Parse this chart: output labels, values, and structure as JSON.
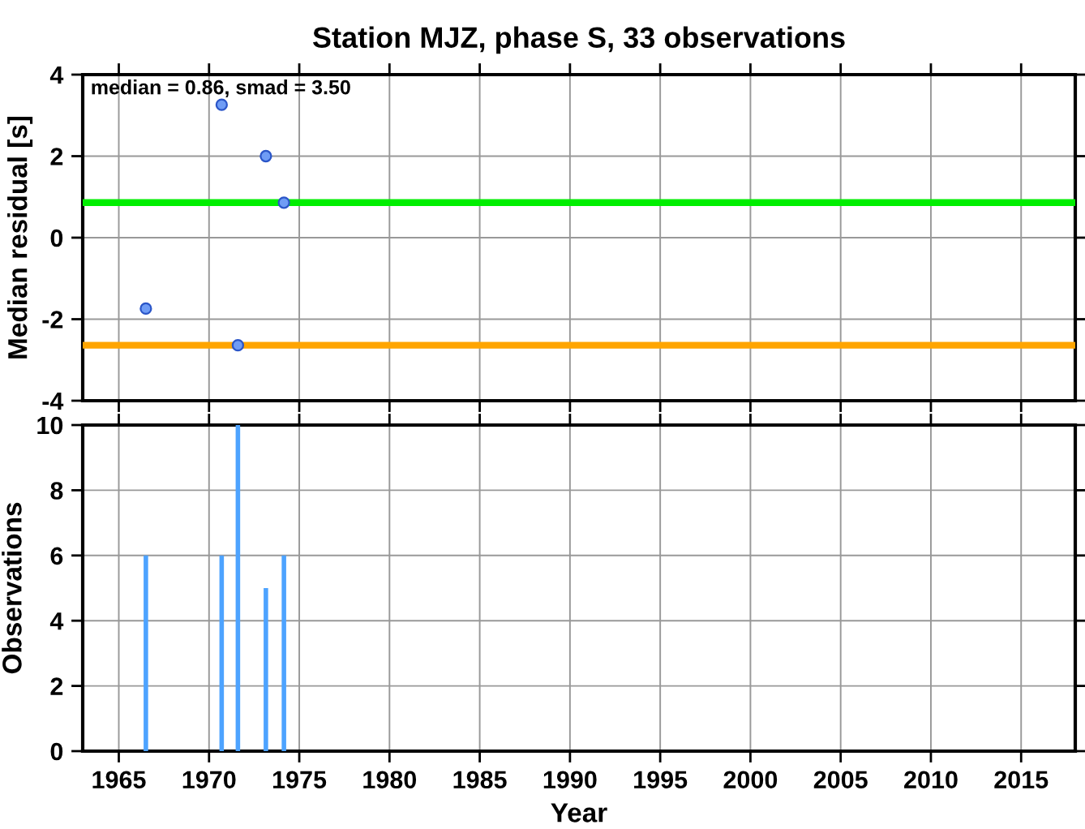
{
  "chart_data": [
    {
      "type": "scatter",
      "title": "Station MJZ, phase S, 33 observations",
      "ylabel": "Median residual [s]",
      "x": [
        1966.5,
        1970.7,
        1971.6,
        1973.15,
        1974.15
      ],
      "values": [
        -1.74,
        3.26,
        -2.64,
        2.0,
        0.86
      ],
      "color": "#6f9cf5",
      "marker": "circle",
      "xlim": [
        1963,
        2018
      ],
      "xticks": [
        1965,
        1970,
        1975,
        1980,
        1985,
        1990,
        1995,
        2000,
        2005,
        2010,
        2015
      ],
      "ylim": [
        -4,
        4
      ],
      "yticks": [
        -4,
        -2,
        0,
        2,
        4
      ],
      "grid": true,
      "tick_labels": "y",
      "annotations": [
        "median = 0.86, smad = 3.50"
      ],
      "ref_lines": [
        {
          "axis": "y",
          "value": 0.86,
          "color": "#00ee00"
        },
        {
          "axis": "y",
          "value": -2.64,
          "color": "#ffa500"
        }
      ]
    },
    {
      "type": "bar",
      "xlabel": "Year",
      "ylabel": "Observations",
      "x": [
        1966.5,
        1970.7,
        1971.6,
        1973.15,
        1974.15
      ],
      "values": [
        6,
        6,
        10,
        5,
        6
      ],
      "color": "#4da3ff",
      "xlim": [
        1963,
        2018
      ],
      "xticks": [
        1965,
        1970,
        1975,
        1980,
        1985,
        1990,
        1995,
        2000,
        2005,
        2010,
        2015
      ],
      "ylim": [
        0,
        10
      ],
      "yticks": [
        0,
        2,
        4,
        6,
        8,
        10
      ],
      "grid": true
    }
  ]
}
